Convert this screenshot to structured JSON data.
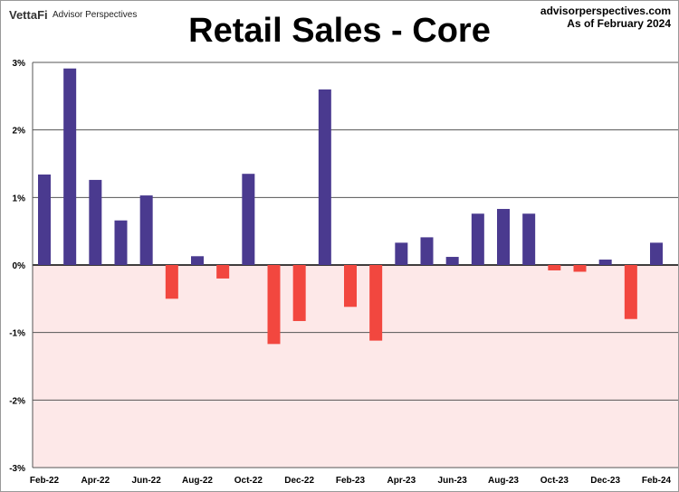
{
  "header": {
    "logo": "VettaFi",
    "brand": "Advisor Perspectives",
    "site": "advisorperspectives.com",
    "asof": "As of February 2024"
  },
  "chart_data": {
    "type": "bar",
    "title": "Retail Sales - Core",
    "xlabel": "",
    "ylabel": "",
    "ylim": [
      -3,
      3
    ],
    "yticks": [
      3,
      2,
      1,
      0,
      -1,
      -2,
      -3
    ],
    "ytick_labels": [
      "3%",
      "2%",
      "1%",
      "0%",
      "-1%",
      "-2%",
      "-3%"
    ],
    "categories": [
      "Feb-22",
      "Mar-22",
      "Apr-22",
      "May-22",
      "Jun-22",
      "Jul-22",
      "Aug-22",
      "Sep-22",
      "Oct-22",
      "Nov-22",
      "Dec-22",
      "Jan-23",
      "Feb-23",
      "Mar-23",
      "Apr-23",
      "May-23",
      "Jun-23",
      "Jul-23",
      "Aug-23",
      "Sep-23",
      "Oct-23",
      "Nov-23",
      "Dec-23",
      "Jan-24",
      "Feb-24"
    ],
    "xtick_labels": [
      "Feb-22",
      "Apr-22",
      "Jun-22",
      "Aug-22",
      "Oct-22",
      "Dec-22",
      "Feb-23",
      "Apr-23",
      "Jun-23",
      "Aug-23",
      "Oct-23",
      "Dec-23",
      "Feb-24"
    ],
    "values": [
      1.34,
      2.91,
      1.26,
      0.66,
      1.03,
      -0.5,
      0.13,
      -0.2,
      1.35,
      -1.17,
      -0.83,
      2.6,
      -0.62,
      -1.12,
      0.33,
      0.41,
      0.12,
      0.76,
      0.83,
      0.76,
      -0.08,
      -0.1,
      0.08,
      -0.8,
      0.33
    ],
    "grid": true,
    "colors": {
      "positive": "#4a3a8f",
      "negative": "#f2473f",
      "negative_band": "#fde8e8"
    }
  }
}
